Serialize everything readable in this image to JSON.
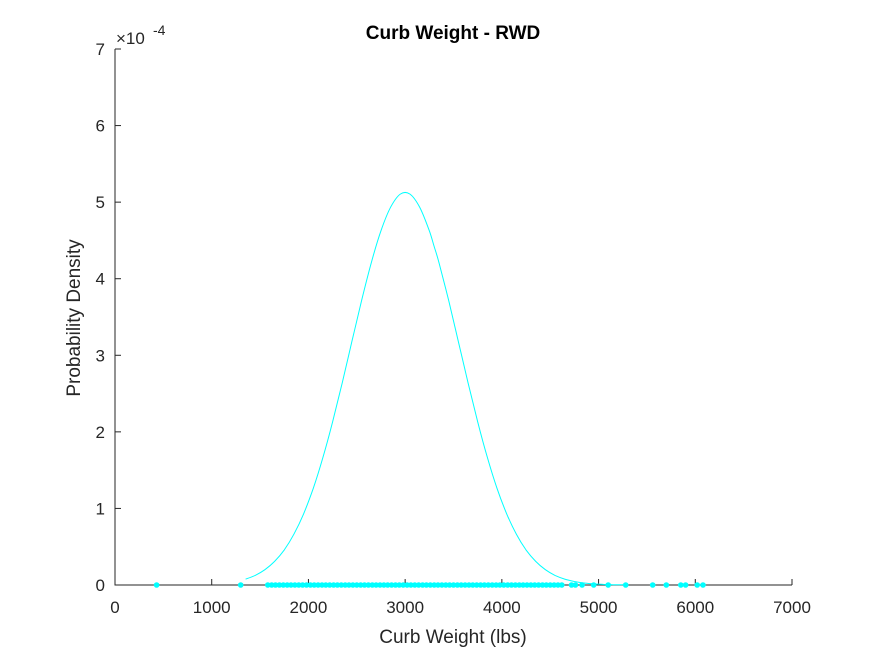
{
  "chart_data": {
    "type": "line",
    "title": "Curb Weight - RWD",
    "xlabel": "Curb Weight (lbs)",
    "ylabel": "Probability Density",
    "xlim": [
      0,
      7000
    ],
    "ylim": [
      0,
      0.0007
    ],
    "x_ticks": [
      0,
      1000,
      2000,
      3000,
      4000,
      5000,
      6000,
      7000
    ],
    "x_tick_labels": [
      "0",
      "1000",
      "2000",
      "3000",
      "4000",
      "5000",
      "6000",
      "7000"
    ],
    "y_ticks": [
      0,
      0.0001,
      0.0002,
      0.0003,
      0.0004,
      0.0005,
      0.0006,
      0.0007
    ],
    "y_tick_labels": [
      "0",
      "1",
      "2",
      "3",
      "4",
      "5",
      "6",
      "7"
    ],
    "y_exponent_label": {
      "base": "×10",
      "power": "-4"
    },
    "grid": false,
    "color": "#00FFFF",
    "series": [
      {
        "kind": "pdf-curve",
        "x": [
          1350,
          1450,
          1550,
          1650,
          1750,
          1850,
          1950,
          2050,
          2150,
          2250,
          2350,
          2450,
          2550,
          2650,
          2750,
          2850,
          2950,
          3050,
          3150,
          3250,
          3300,
          3350,
          3450,
          3550,
          3650,
          3750,
          3850,
          3950,
          4050,
          4150,
          4250,
          4350,
          4450,
          4550,
          4650,
          4750,
          4850,
          4950,
          5050,
          5150,
          5250
        ],
        "y": [
          7.7e-06,
          1.26e-05,
          2e-05,
          3.08e-05,
          4.59e-05,
          6.63e-05,
          9.29e-05,
          0.0001263,
          0.0001665,
          0.000213,
          0.0002643,
          0.0003181,
          0.0003715,
          0.0004209,
          0.0004627,
          0.0004934,
          0.0005105,
          0.0005105,
          0.0004934,
          0.0004627,
          0.000442,
          0.0004209,
          0.0003715,
          0.0003181,
          0.0002643,
          0.000213,
          0.0001665,
          0.0001263,
          9.29e-05,
          6.63e-05,
          4.59e-05,
          3.08e-05,
          2e-05,
          1.26e-05,
          7.7e-06,
          4.6e-06,
          2.6e-06,
          1.5e-06,
          8e-07,
          4e-07,
          2e-07
        ]
      },
      {
        "kind": "observations",
        "y": 0,
        "x": [
          430,
          1300,
          1580,
          1620,
          1660,
          1700,
          1740,
          1780,
          1820,
          1860,
          1900,
          1940,
          1980,
          2020,
          2060,
          2100,
          2140,
          2180,
          2220,
          2260,
          2300,
          2340,
          2380,
          2420,
          2460,
          2500,
          2540,
          2580,
          2620,
          2660,
          2700,
          2740,
          2780,
          2820,
          2860,
          2900,
          2940,
          2980,
          3020,
          3060,
          3100,
          3140,
          3180,
          3220,
          3260,
          3300,
          3340,
          3380,
          3420,
          3460,
          3500,
          3540,
          3580,
          3620,
          3660,
          3700,
          3740,
          3780,
          3820,
          3860,
          3900,
          3940,
          3980,
          4020,
          4060,
          4100,
          4140,
          4180,
          4220,
          4260,
          4300,
          4340,
          4380,
          4420,
          4460,
          4500,
          4540,
          4580,
          4620,
          4720,
          4760,
          4830,
          4950,
          5100,
          5280,
          5560,
          5700,
          5850,
          5900,
          6020,
          6080
        ]
      }
    ]
  }
}
